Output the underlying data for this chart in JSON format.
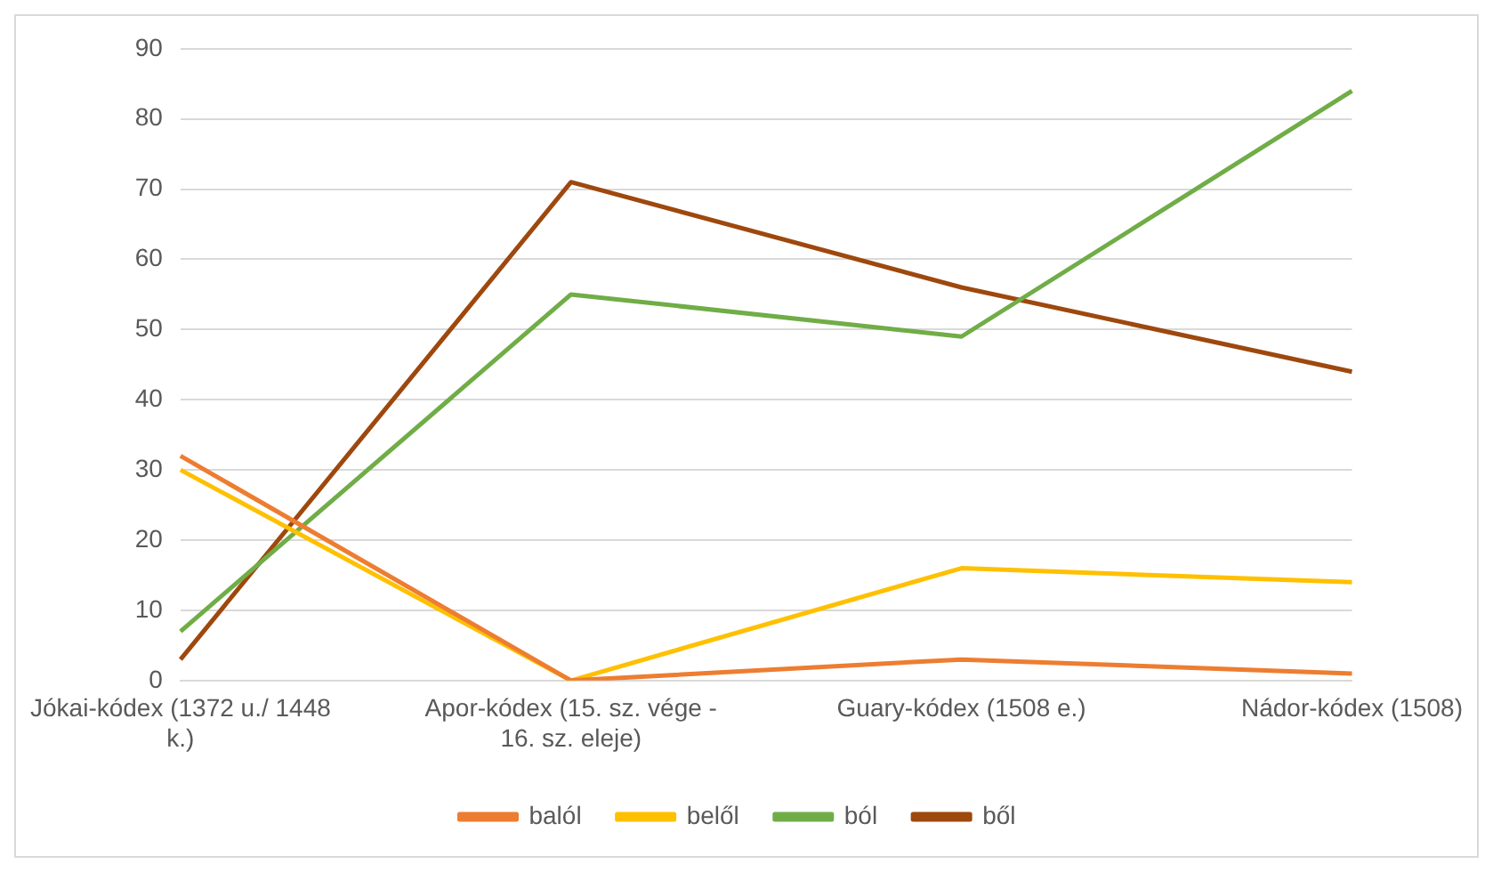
{
  "chart_data": {
    "type": "line",
    "categories": [
      "Jókai-kódex (1372 u./ 1448 k.)",
      "Apor-kódex (15. sz. vége - 16. sz. eleje)",
      "Guary-kódex (1508 e.)",
      "Nádor-kódex (1508)"
    ],
    "series": [
      {
        "name": "balól",
        "color": "#ed7d31",
        "values": [
          32,
          0,
          3,
          1
        ]
      },
      {
        "name": "belől",
        "color": "#ffc000",
        "values": [
          30,
          0,
          16,
          14
        ]
      },
      {
        "name": "ból",
        "color": "#70ad47",
        "values": [
          7,
          55,
          49,
          84
        ]
      },
      {
        "name": "ből",
        "color": "#9e480e",
        "values": [
          3,
          71,
          56,
          44
        ]
      }
    ],
    "ylim": [
      0,
      90
    ],
    "yticks": [
      0,
      10,
      20,
      30,
      40,
      50,
      60,
      70,
      80,
      90
    ],
    "grid": "y",
    "legend": "bottom",
    "marker": "none",
    "line_style": "solid"
  }
}
